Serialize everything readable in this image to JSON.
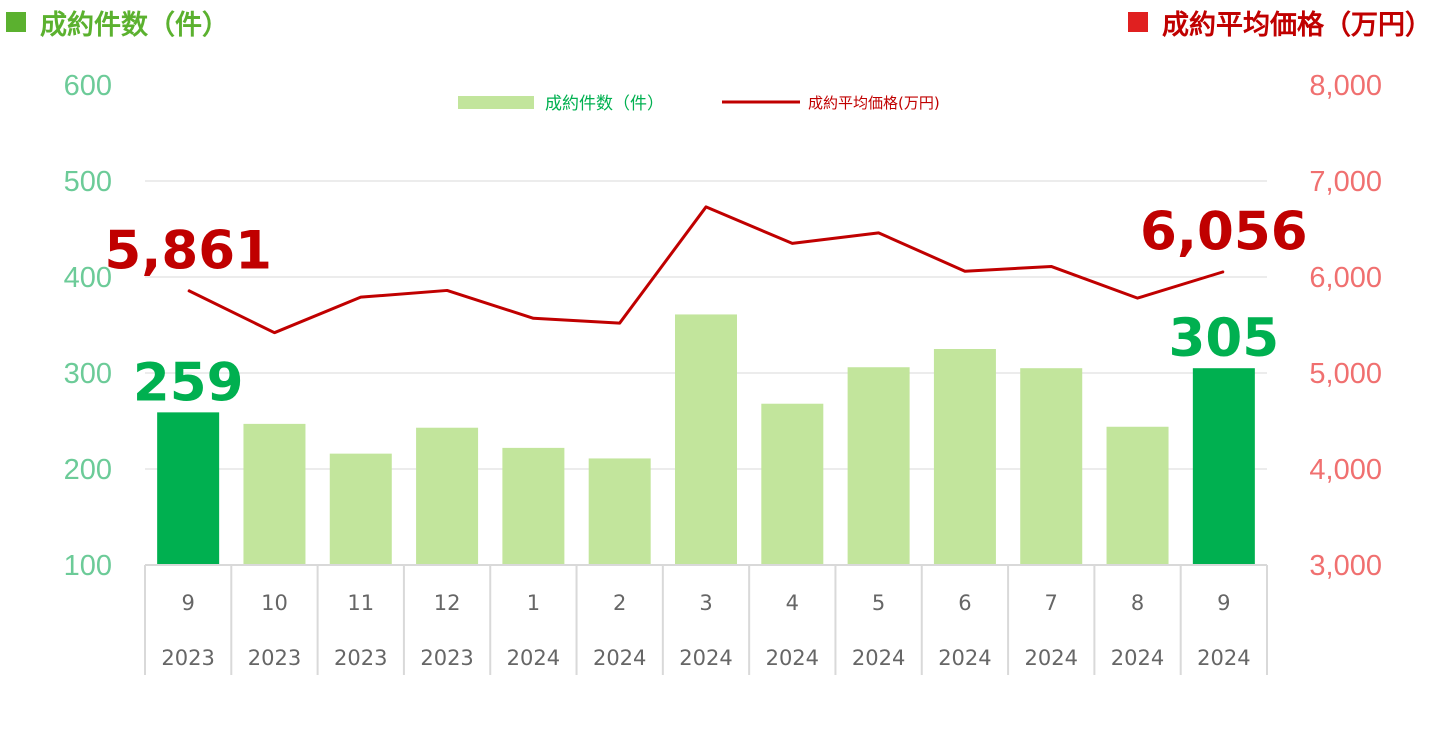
{
  "header": {
    "left_title": "成約件数（件）",
    "right_title": "成約平均価格（万円）"
  },
  "legend": {
    "bar_label": "成約件数（件）",
    "line_label": "成約平均価格(万円)"
  },
  "colors": {
    "bar": "#c2e59c",
    "bar_highlight": "#00b050",
    "line": "#c00000",
    "left_axis": "#6ccb98",
    "right_axis": "#f07070",
    "grid": "#d9d9d9"
  },
  "chart_data": {
    "type": "bar",
    "categories": [
      {
        "month": "9",
        "year": "2023"
      },
      {
        "month": "10",
        "year": "2023"
      },
      {
        "month": "11",
        "year": "2023"
      },
      {
        "month": "12",
        "year": "2023"
      },
      {
        "month": "1",
        "year": "2024"
      },
      {
        "month": "2",
        "year": "2024"
      },
      {
        "month": "3",
        "year": "2024"
      },
      {
        "month": "4",
        "year": "2024"
      },
      {
        "month": "5",
        "year": "2024"
      },
      {
        "month": "6",
        "year": "2024"
      },
      {
        "month": "7",
        "year": "2024"
      },
      {
        "month": "8",
        "year": "2024"
      },
      {
        "month": "9",
        "year": "2024"
      }
    ],
    "series": [
      {
        "name": "成約件数（件）",
        "type": "bar",
        "axis": "left",
        "values": [
          259,
          247,
          216,
          243,
          222,
          211,
          361,
          268,
          306,
          325,
          305,
          244,
          305
        ],
        "highlight_indices": [
          0,
          12
        ]
      },
      {
        "name": "成約平均価格(万円)",
        "type": "line",
        "axis": "right",
        "values": [
          5861,
          5420,
          5790,
          5860,
          5570,
          5520,
          6730,
          6350,
          6460,
          6060,
          6110,
          5780,
          6056
        ]
      }
    ],
    "left_axis": {
      "ylim": [
        100,
        600
      ],
      "ticks": [
        "100",
        "200",
        "300",
        "400",
        "500",
        "600"
      ]
    },
    "right_axis": {
      "ylim": [
        3000,
        8000
      ],
      "ticks": [
        "3,000",
        "4,000",
        "5,000",
        "6,000",
        "7,000",
        "8,000"
      ]
    },
    "callouts": [
      {
        "text": "259",
        "series": 0,
        "index": 0
      },
      {
        "text": "305",
        "series": 0,
        "index": 12
      },
      {
        "text": "5,861",
        "series": 1,
        "index": 0
      },
      {
        "text": "6,056",
        "series": 1,
        "index": 12
      }
    ],
    "grid": true,
    "legend_position": "top-center"
  }
}
